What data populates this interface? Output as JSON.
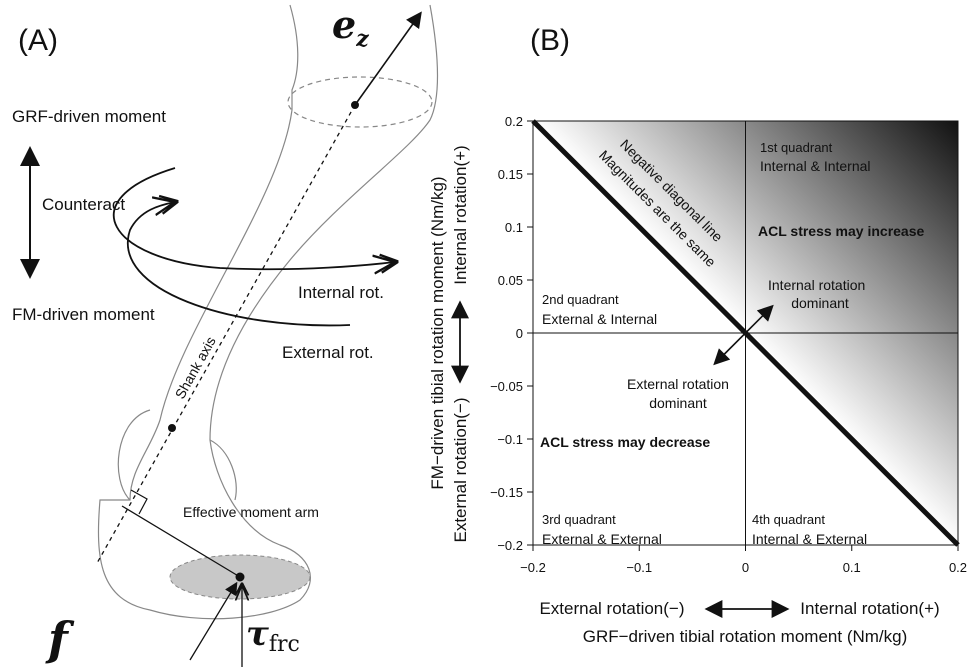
{
  "panel_a": {
    "label": "(A)",
    "axis_symbol": "e",
    "axis_subscript": "z",
    "grf_moment": "GRF-driven moment",
    "counteract": "Counteract",
    "fm_moment": "FM-driven moment",
    "internal_rot": "Internal rot.",
    "external_rot": "External rot.",
    "shank_axis": "Shank axis",
    "moment_arm": "Effective moment arm",
    "force_symbol": "f",
    "torque_symbol": "τ",
    "torque_subscript": "frc"
  },
  "panel_b": {
    "label": "(B)",
    "xlabel": "GRF−driven tibial rotation moment (Nm/kg)",
    "x_negative": "External rotation(−)",
    "x_positive": "Internal rotation(+)",
    "ylabel": "FM−driven tibial rotation moment (Nm/kg)",
    "y_negative": "External rotation(−)",
    "y_positive": "Internal rotation(+)",
    "xlim": [
      -0.2,
      0.2
    ],
    "ylim": [
      -0.2,
      0.2
    ],
    "xticks": [
      {
        "value": -0.2,
        "label": "−0.2"
      },
      {
        "value": -0.1,
        "label": "−0.1"
      },
      0,
      0.1,
      0.2
    ],
    "yticks": [
      {
        "value": -0.2,
        "label": "−0.2"
      },
      {
        "value": -0.15,
        "label": "−0.15"
      },
      {
        "value": -0.1,
        "label": "−0.1"
      },
      {
        "value": -0.05,
        "label": "−0.05"
      },
      0,
      0.05,
      0.1,
      0.15,
      0.2
    ],
    "diagonal": [
      "Negative diagonal line",
      "Magnitudes are the same"
    ],
    "q1": [
      "1st quadrant",
      "Internal & Internal"
    ],
    "q2": [
      "2nd quadrant",
      "External & Internal"
    ],
    "q3": [
      "3rd quadrant",
      "External & External"
    ],
    "q4": [
      "4th quadrant",
      "Internal & External"
    ],
    "increase": "ACL stress may increase",
    "decrease": "ACL stress may decrease",
    "internal_dominant": [
      "Internal rotation",
      "dominant"
    ],
    "external_dominant": [
      "External rotation",
      "dominant"
    ]
  }
}
